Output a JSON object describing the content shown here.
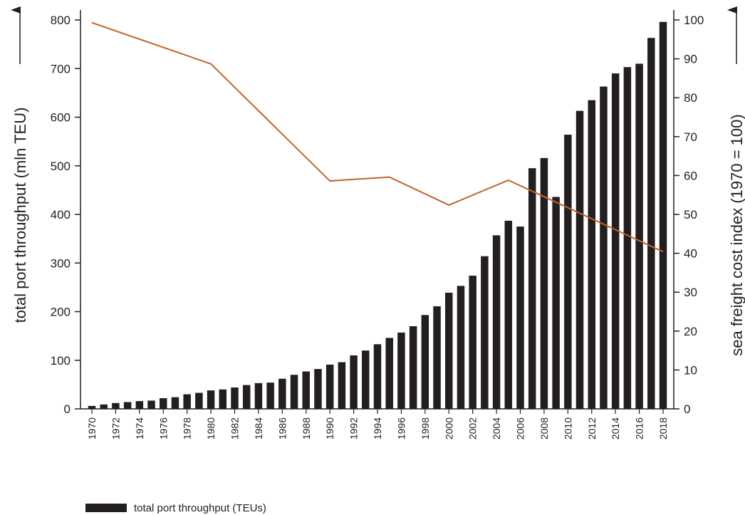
{
  "chart_data": {
    "type": "bar",
    "x": [
      "1970",
      "1971",
      "1972",
      "1973",
      "1974",
      "1975",
      "1976",
      "1977",
      "1978",
      "1979",
      "1980",
      "1981",
      "1982",
      "1983",
      "1984",
      "1985",
      "1986",
      "1987",
      "1988",
      "1989",
      "1990",
      "1991",
      "1992",
      "1993",
      "1994",
      "1995",
      "1996",
      "1997",
      "1998",
      "1999",
      "2000",
      "2001",
      "2002",
      "2003",
      "2004",
      "2005",
      "2006",
      "2007",
      "2008",
      "2009",
      "2010",
      "2011",
      "2012",
      "2013",
      "2014",
      "2015",
      "2016",
      "2017",
      "2018"
    ],
    "xtick_labels": [
      "1970",
      "1972",
      "1974",
      "1976",
      "1978",
      "1980",
      "1982",
      "1984",
      "1986",
      "1988",
      "1990",
      "1992",
      "1994",
      "1996",
      "1998",
      "2000",
      "2002",
      "2004",
      "2006",
      "2008",
      "2010",
      "2012",
      "2014",
      "2016",
      "2018"
    ],
    "series": [
      {
        "name": "total port throughput  (TEUs)",
        "type": "bar",
        "axis": "left",
        "color": "#231f20",
        "values": [
          6,
          9,
          12,
          14,
          16,
          17,
          22,
          24,
          30,
          33,
          38,
          40,
          44,
          49,
          53,
          54,
          62,
          70,
          77,
          82,
          91,
          96,
          110,
          120,
          133,
          146,
          157,
          170,
          193,
          211,
          239,
          253,
          274,
          314,
          357,
          387,
          375,
          495,
          516,
          436,
          564,
          613,
          635,
          663,
          690,
          703,
          710,
          763,
          796
        ]
      },
      {
        "name": "sea freight cost index",
        "type": "line",
        "axis": "right",
        "color": "#c0632c",
        "x": [
          "1970",
          "1980",
          "1990",
          "1995",
          "2000",
          "2005",
          "2018"
        ],
        "values": [
          99.3,
          88.7,
          58.6,
          59.6,
          52.4,
          58.8,
          40.4
        ]
      }
    ],
    "ylabel": "total port throughput  (mln TEU)",
    "y2label": "sea freight cost index  (1970 = 100)",
    "ylim": [
      0,
      800
    ],
    "yticks": [
      0,
      100,
      200,
      300,
      400,
      500,
      600,
      700,
      800
    ],
    "y2lim": [
      0,
      100
    ],
    "y2ticks": [
      0,
      10,
      20,
      30,
      40,
      50,
      60,
      70,
      80,
      90,
      100
    ],
    "grid": false,
    "legend_position": "bottom-left"
  },
  "legend": {
    "bar_label": "total port throughput  (TEUs)"
  }
}
